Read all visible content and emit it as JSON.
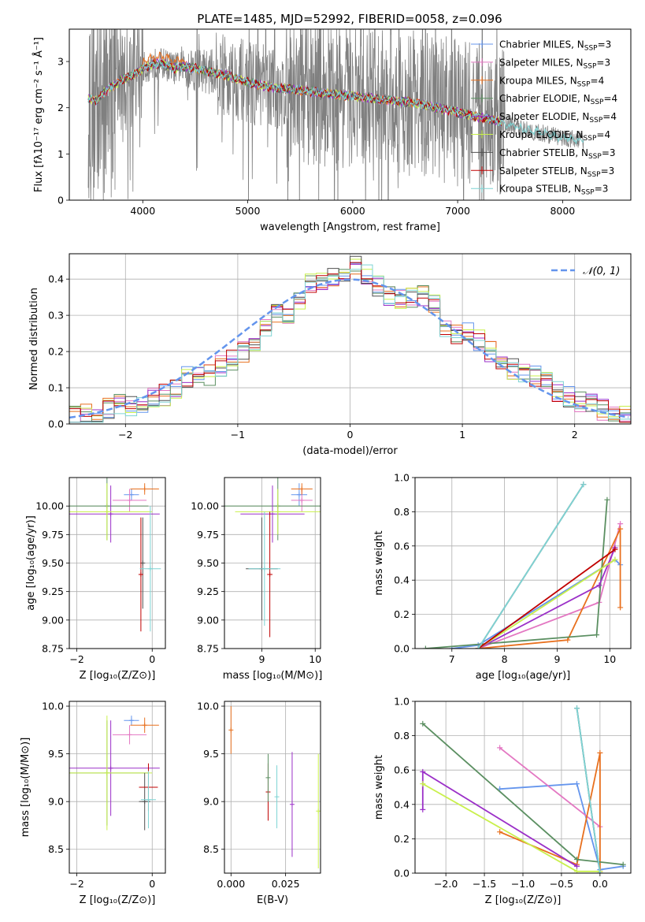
{
  "colors": {
    "data_gray": "#808080",
    "grid": "#b0b0b0",
    "normal_curve": "#6495ED",
    "series": [
      "#6495ED",
      "#E377C2",
      "#E8701E",
      "#5B8F61",
      "#9B30C8",
      "#C9F04C",
      "#505050",
      "#C00000",
      "#7ED4D4"
    ]
  },
  "models": [
    {
      "name": "Chabrier MILES",
      "nssp": "3"
    },
    {
      "name": "Salpeter MILES",
      "nssp": "3"
    },
    {
      "name": "Kroupa MILES",
      "nssp": "4"
    },
    {
      "name": "Chabrier ELODIE",
      "nssp": "4"
    },
    {
      "name": "Salpeter ELODIE",
      "nssp": "4"
    },
    {
      "name": "Kroupa ELODIE",
      "nssp": "4"
    },
    {
      "name": "Chabrier STELIB",
      "nssp": "3"
    },
    {
      "name": "Salpeter STELIB",
      "nssp": "3"
    },
    {
      "name": "Kroupa STELIB",
      "nssp": "3"
    }
  ],
  "chart_data": [
    {
      "id": "spectrum",
      "type": "line",
      "title": "PLATE=1485, MJD=52992, FIBERID=0058, z=0.096",
      "xlabel": "wavelength [Angstrom, rest frame]",
      "ylabel": "Flux [fλ10⁻¹⁷ erg cm⁻² s⁻¹ Å⁻¹]",
      "xlim": [
        3300,
        8650
      ],
      "ylim": [
        0,
        3.7
      ],
      "xticks": [
        4000,
        5000,
        6000,
        7000,
        8000
      ],
      "yticks": [
        0,
        1,
        2,
        3
      ],
      "grid": false,
      "legend": "right",
      "legend_entries": [
        "Chabrier MILES, N_SSP=3",
        "Salpeter MILES, N_SSP=3",
        "Kroupa MILES, N_SSP=4",
        "Chabrier ELODIE, N_SSP=4",
        "Salpeter ELODIE, N_SSP=4",
        "Kroupa ELODIE, N_SSP=4",
        "Chabrier STELIB, N_SSP=3",
        "Salpeter STELIB, N_SSP=3",
        "Kroupa STELIB, N_SSP=3"
      ],
      "model_continuum": {
        "wavelength": [
          3480,
          3560,
          3620,
          3700,
          3800,
          3900,
          4000,
          4100,
          4200,
          4300,
          4400,
          4600,
          4800,
          5000,
          5200,
          5400,
          5600,
          5800,
          6000,
          6200,
          6400,
          6600,
          6800,
          7000,
          7200,
          7400,
          7600,
          7800,
          8000,
          8200
        ],
        "flux": [
          2.2,
          2.15,
          2.3,
          2.45,
          2.6,
          2.7,
          2.85,
          2.95,
          2.95,
          2.85,
          2.9,
          2.8,
          2.7,
          2.55,
          2.45,
          2.4,
          2.35,
          2.3,
          2.25,
          2.2,
          2.15,
          2.1,
          2.0,
          1.9,
          1.8,
          1.7,
          1.55,
          1.45,
          1.35,
          1.3
        ]
      }
    },
    {
      "id": "residuals",
      "type": "line",
      "xlabel": "(data-model)/error",
      "ylabel": "Normed distribution",
      "xlim": [
        -2.5,
        2.5
      ],
      "ylim": [
        0,
        0.47
      ],
      "xticks": [
        -2,
        -1,
        0,
        1,
        2
      ],
      "yticks": [
        0.0,
        0.1,
        0.2,
        0.3,
        0.4
      ],
      "grid": true,
      "legend": "top-right",
      "curve_label": "𝒩(0, 1)",
      "histogram_bins": [
        -2.5,
        -2.4,
        -2.3,
        -2.2,
        -2.1,
        -2.0,
        -1.9,
        -1.8,
        -1.7,
        -1.6,
        -1.5,
        -1.4,
        -1.3,
        -1.2,
        -1.1,
        -1.0,
        -0.9,
        -0.8,
        -0.7,
        -0.6,
        -0.5,
        -0.4,
        -0.3,
        -0.2,
        -0.1,
        0.0,
        0.1,
        0.2,
        0.3,
        0.4,
        0.5,
        0.6,
        0.7,
        0.8,
        0.9,
        1.0,
        1.1,
        1.2,
        1.3,
        1.4,
        1.5,
        1.6,
        1.7,
        1.8,
        1.9,
        2.0,
        2.1,
        2.2,
        2.3,
        2.4,
        2.5
      ],
      "histogram_values": [
        0.02,
        0.025,
        0.03,
        0.045,
        0.055,
        0.05,
        0.045,
        0.07,
        0.08,
        0.1,
        0.13,
        0.14,
        0.135,
        0.16,
        0.175,
        0.2,
        0.23,
        0.27,
        0.31,
        0.3,
        0.34,
        0.385,
        0.39,
        0.4,
        0.405,
        0.435,
        0.41,
        0.38,
        0.355,
        0.345,
        0.35,
        0.355,
        0.33,
        0.27,
        0.25,
        0.25,
        0.23,
        0.2,
        0.17,
        0.15,
        0.145,
        0.13,
        0.12,
        0.09,
        0.075,
        0.06,
        0.055,
        0.04,
        0.035,
        0.03,
        0.025
      ]
    },
    {
      "id": "age-vs-Z",
      "type": "scatter",
      "xlabel": "Z [log₁₀(Z/Z⊙)]",
      "ylabel": "age  [log₁₀(age/yr)]",
      "xlim": [
        -2.2,
        0.35
      ],
      "ylim": [
        8.75,
        10.25
      ],
      "xticks": [
        -2,
        0
      ],
      "yticks": [
        8.75,
        9.0,
        9.25,
        9.5,
        9.75,
        10.0
      ],
      "grid": true,
      "points": [
        {
          "s": 0,
          "x": -0.55,
          "y": 10.1,
          "xe": 0.2,
          "ye": 0.05
        },
        {
          "s": 1,
          "x": -0.6,
          "y": 10.05,
          "xe": 0.45,
          "ye": 0.1
        },
        {
          "s": 2,
          "x": -0.2,
          "y": 10.15,
          "xe": 0.38,
          "ye": 0.05
        },
        {
          "s": 3,
          "x": -1.2,
          "y": 10.0,
          "xe": 1.1,
          "ye": 0.3
        },
        {
          "s": 4,
          "x": -1.1,
          "y": 9.93,
          "xe": 1.3,
          "ye": 0.25
        },
        {
          "s": 5,
          "x": -1.2,
          "y": 9.95,
          "xe": 1.2,
          "ye": 0.25
        },
        {
          "s": 6,
          "x": -0.25,
          "y": 9.5,
          "xe": 0.05,
          "ye": 0.4
        },
        {
          "s": 7,
          "x": -0.3,
          "y": 9.4,
          "xe": 0.05,
          "ye": 0.5
        },
        {
          "s": 8,
          "x": -0.05,
          "y": 9.45,
          "xe": 0.28,
          "ye": 0.55
        }
      ]
    },
    {
      "id": "age-vs-mass",
      "type": "scatter",
      "xlabel": "mass [log₁₀(M/M⊙)]",
      "ylabel": "",
      "xlim": [
        8.3,
        10.1
      ],
      "ylim": [
        8.75,
        10.25
      ],
      "xticks": [
        9,
        10
      ],
      "yticks": [
        8.75,
        9.0,
        9.25,
        9.5,
        9.75,
        10.0
      ],
      "grid": true,
      "points": [
        {
          "s": 0,
          "x": 9.7,
          "y": 10.1,
          "xe": 0.15,
          "ye": 0.1
        },
        {
          "s": 1,
          "x": 9.75,
          "y": 10.05,
          "xe": 0.2,
          "ye": 0.1
        },
        {
          "s": 2,
          "x": 9.75,
          "y": 10.15,
          "xe": 0.2,
          "ye": 0.05
        },
        {
          "s": 3,
          "x": 9.3,
          "y": 10.0,
          "xe": 1.1,
          "ye": 0.3
        },
        {
          "s": 4,
          "x": 9.2,
          "y": 9.93,
          "xe": 0.6,
          "ye": 0.25
        },
        {
          "s": 5,
          "x": 9.3,
          "y": 9.95,
          "xe": 0.8,
          "ye": 0.2
        },
        {
          "s": 6,
          "x": 9.0,
          "y": 9.45,
          "xe": 0.3,
          "ye": 0.45
        },
        {
          "s": 7,
          "x": 9.15,
          "y": 9.4,
          "xe": 0.05,
          "ye": 0.55
        },
        {
          "s": 8,
          "x": 9.05,
          "y": 9.45,
          "xe": 0.3,
          "ye": 0.5
        }
      ]
    },
    {
      "id": "weight-vs-age",
      "type": "line",
      "xlabel": "age  [log₁₀(age/yr)]",
      "ylabel": "mass weight",
      "xlim": [
        6.3,
        10.4
      ],
      "ylim": [
        0,
        1.0
      ],
      "xticks": [
        7,
        8,
        9,
        10
      ],
      "yticks": [
        0.0,
        0.2,
        0.4,
        0.6,
        0.8,
        1.0
      ],
      "grid": true,
      "series": [
        {
          "s": 0,
          "x": [
            7.0,
            7.5,
            10.1,
            10.2
          ],
          "y": [
            0.0,
            0.02,
            0.52,
            0.49
          ]
        },
        {
          "s": 1,
          "x": [
            7.5,
            9.8,
            10.2
          ],
          "y": [
            0.0,
            0.27,
            0.73
          ]
        },
        {
          "s": 2,
          "x": [
            7.5,
            9.2,
            10.2,
            10.2
          ],
          "y": [
            0.0,
            0.05,
            0.7,
            0.24
          ]
        },
        {
          "s": 3,
          "x": [
            6.5,
            9.75,
            9.95
          ],
          "y": [
            0.0,
            0.08,
            0.87
          ]
        },
        {
          "s": 4,
          "x": [
            7.5,
            9.8,
            10.1
          ],
          "y": [
            0.0,
            0.37,
            0.59
          ]
        },
        {
          "s": 5,
          "x": [
            7.5,
            10.1
          ],
          "y": [
            0.0,
            0.52
          ]
        },
        {
          "s": 6,
          "x": [
            7.5,
            9.5
          ],
          "y": [
            0.0,
            0.96
          ]
        },
        {
          "s": 7,
          "x": [
            7.5,
            10.1
          ],
          "y": [
            0.0,
            0.58
          ]
        },
        {
          "s": 8,
          "x": [
            7.5,
            9.5
          ],
          "y": [
            0.0,
            0.96
          ]
        }
      ]
    },
    {
      "id": "mass-vs-Z",
      "type": "scatter",
      "xlabel": "Z [log₁₀(Z/Z⊙)]",
      "ylabel": "mass [log₁₀(M/M⊙)]",
      "xlim": [
        -2.2,
        0.35
      ],
      "ylim": [
        8.25,
        10.05
      ],
      "xticks": [
        -2,
        0
      ],
      "yticks": [
        8.5,
        9.0,
        9.5,
        10.0
      ],
      "grid": true,
      "points": [
        {
          "s": 0,
          "x": -0.55,
          "y": 9.85,
          "xe": 0.2,
          "ye": 0.05
        },
        {
          "s": 1,
          "x": -0.6,
          "y": 9.7,
          "xe": 0.45,
          "ye": 0.1
        },
        {
          "s": 2,
          "x": -0.2,
          "y": 9.8,
          "xe": 0.38,
          "ye": 0.08
        },
        {
          "s": 3,
          "x": -1.2,
          "y": 9.3,
          "xe": 1.1,
          "ye": 0.55
        },
        {
          "s": 4,
          "x": -1.1,
          "y": 9.35,
          "xe": 1.3,
          "ye": 0.5
        },
        {
          "s": 5,
          "x": -1.2,
          "y": 9.3,
          "xe": 1.2,
          "ye": 0.6
        },
        {
          "s": 6,
          "x": -0.2,
          "y": 9.0,
          "xe": 0.15,
          "ye": 0.3
        },
        {
          "s": 7,
          "x": -0.1,
          "y": 9.15,
          "xe": 0.25,
          "ye": 0.25
        },
        {
          "s": 8,
          "x": -0.1,
          "y": 9.02,
          "xe": 0.2,
          "ye": 0.3
        }
      ]
    },
    {
      "id": "mass-vs-ebv",
      "type": "scatter",
      "xlabel": "E(B-V)",
      "ylabel": "",
      "xlim": [
        -0.003,
        0.041
      ],
      "ylim": [
        8.25,
        10.05
      ],
      "xticks": [
        0.0,
        0.025
      ],
      "yticks": [
        8.5,
        9.0,
        9.5,
        10.0
      ],
      "grid": true,
      "points": [
        {
          "s": 2,
          "x": 0.0,
          "y": 9.75,
          "xe": 0,
          "ye": 0.25
        },
        {
          "s": 7,
          "x": 0.017,
          "y": 9.1,
          "xe": 0,
          "ye": 0.3
        },
        {
          "s": 3,
          "x": 0.017,
          "y": 9.25,
          "xe": 0,
          "ye": 0.25
        },
        {
          "s": 8,
          "x": 0.021,
          "y": 9.05,
          "xe": 0,
          "ye": 0.33
        },
        {
          "s": 4,
          "x": 0.028,
          "y": 8.97,
          "xe": 0,
          "ye": 0.55
        },
        {
          "s": 5,
          "x": 0.04,
          "y": 8.9,
          "xe": 0,
          "ye": 0.6
        }
      ]
    },
    {
      "id": "weight-vs-Z",
      "type": "line",
      "xlabel": "Z [log₁₀(Z/Z⊙)]",
      "ylabel": "mass weight",
      "xlim": [
        -2.4,
        0.4
      ],
      "ylim": [
        0,
        1.0
      ],
      "xticks": [
        -2.0,
        -1.5,
        -1.0,
        -0.5,
        0.0
      ],
      "yticks": [
        0.0,
        0.2,
        0.4,
        0.6,
        0.8,
        1.0
      ],
      "grid": true,
      "series": [
        {
          "s": 0,
          "x": [
            -1.3,
            -0.3,
            0.0,
            0.3
          ],
          "y": [
            0.49,
            0.52,
            0.02,
            0.04
          ]
        },
        {
          "s": 1,
          "x": [
            -1.3,
            0.0
          ],
          "y": [
            0.73,
            0.27
          ]
        },
        {
          "s": 2,
          "x": [
            -1.3,
            -0.3,
            0.0,
            0.0
          ],
          "y": [
            0.24,
            0.05,
            0.7,
            0.01
          ]
        },
        {
          "s": 3,
          "x": [
            -2.3,
            -0.3,
            0.3
          ],
          "y": [
            0.87,
            0.08,
            0.05
          ]
        },
        {
          "s": 4,
          "x": [
            -2.3,
            -2.3,
            -0.3
          ],
          "y": [
            0.37,
            0.59,
            0.04
          ]
        },
        {
          "s": 5,
          "x": [
            -2.3,
            -0.3,
            0.0
          ],
          "y": [
            0.52,
            0.01,
            0.01
          ]
        },
        {
          "s": 6,
          "x": [
            -0.3,
            0.0
          ],
          "y": [
            0.96,
            0.0
          ]
        },
        {
          "s": 8,
          "x": [
            -0.3,
            0.0
          ],
          "y": [
            0.96,
            0.0
          ]
        }
      ]
    }
  ]
}
